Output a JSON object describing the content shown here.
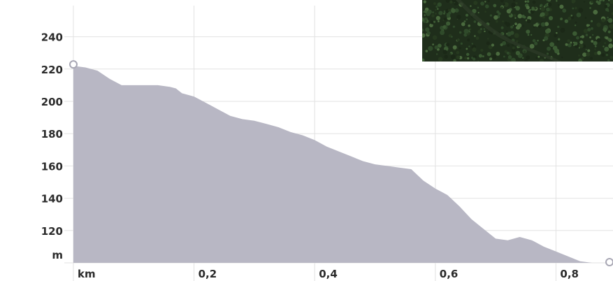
{
  "chart_data": {
    "type": "area",
    "x_unit": "km",
    "y_unit": "m",
    "x_ticks": [
      "0,2",
      "0,4",
      "0,6",
      "0,8"
    ],
    "x_tick_values": [
      0.2,
      0.4,
      0.6,
      0.8
    ],
    "y_ticks": [
      "120",
      "140",
      "160",
      "180",
      "200",
      "220",
      "240"
    ],
    "y_tick_values": [
      120,
      140,
      160,
      180,
      200,
      220,
      240
    ],
    "xlim": [
      0,
      0.88
    ],
    "ylim": [
      100,
      260
    ],
    "grid": true,
    "fill_color": "#b8b7c4",
    "grid_color": "#e2e2e2",
    "series": [
      {
        "x": [
          0,
          0.02,
          0.04,
          0.06,
          0.08,
          0.09,
          0.12,
          0.14,
          0.16,
          0.17,
          0.18,
          0.2,
          0.22,
          0.24,
          0.26,
          0.28,
          0.3,
          0.32,
          0.34,
          0.36,
          0.38,
          0.4,
          0.42,
          0.44,
          0.46,
          0.48,
          0.5,
          0.52,
          0.54,
          0.56,
          0.58,
          0.6,
          0.62,
          0.64,
          0.66,
          0.68,
          0.7,
          0.72,
          0.74,
          0.76,
          0.78,
          0.8,
          0.82,
          0.84,
          0.86,
          0.87
        ],
        "y": [
          222,
          221,
          219,
          214,
          210,
          210,
          210,
          210,
          209,
          208,
          205,
          203,
          199,
          195,
          191,
          189,
          188,
          186,
          184,
          181,
          179,
          176,
          172,
          169,
          166,
          163,
          161,
          160,
          159,
          158,
          151,
          146,
          142,
          135,
          127,
          121,
          115,
          114,
          116,
          114,
          110,
          107,
          104,
          101,
          100,
          100
        ]
      }
    ]
  },
  "thumbnail": {
    "icon": "forest-aerial-photo-icon"
  }
}
